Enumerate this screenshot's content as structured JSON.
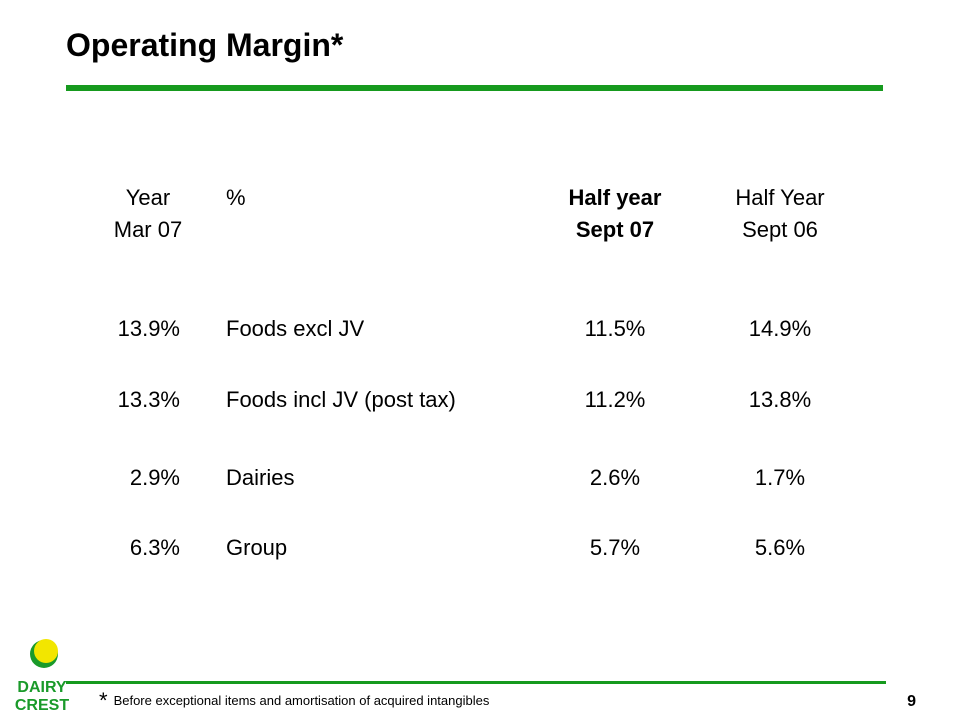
{
  "slide": {
    "title": "Operating Margin*",
    "page_number": "9",
    "footnote_marker": "*",
    "footnote": "Before exceptional items and amortisation of acquired intangibles"
  },
  "logo": {
    "line1": "DAIRY",
    "line2": "CREST"
  },
  "colors": {
    "accent_green": "#169a1e",
    "logo_yellow": "#f2e600",
    "logo_green": "#1a9a2a"
  },
  "table": {
    "headers": [
      [
        "Year",
        "Mar 07"
      ],
      [
        "%"
      ],
      [
        "Half year",
        "Sept 07"
      ],
      [
        "Half Year",
        "Sept 06"
      ]
    ],
    "rows": [
      [
        "13.9%",
        "Foods excl JV",
        "11.5%",
        "14.9%"
      ],
      [
        "13.3%",
        "Foods incl JV (post tax)",
        "11.2%",
        "13.8%"
      ],
      [
        "2.9%",
        "Dairies",
        "2.6%",
        "1.7%"
      ],
      [
        "6.3%",
        "Group",
        "5.7%",
        "5.6%"
      ]
    ]
  }
}
